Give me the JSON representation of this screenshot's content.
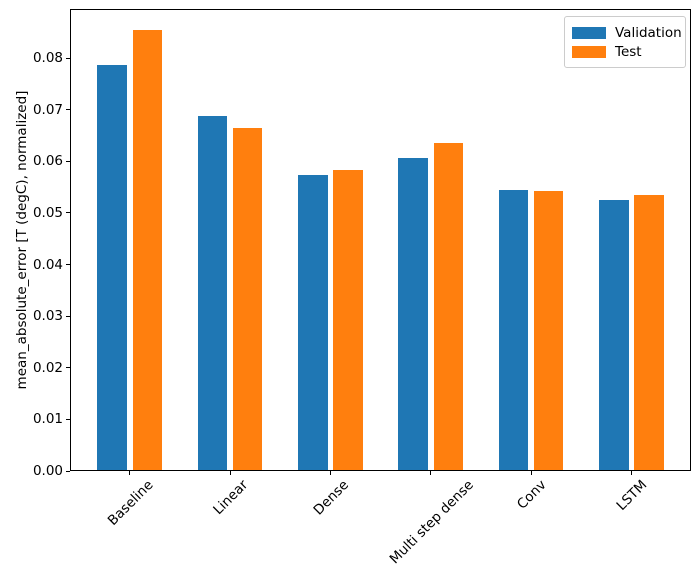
{
  "chart_data": {
    "type": "bar",
    "title": "",
    "xlabel": "",
    "ylabel": "mean_absolute_error [T (degC), normalized]",
    "categories": [
      "Baseline",
      "Linear",
      "Dense",
      "Multi step dense",
      "Conv",
      "LSTM"
    ],
    "series": [
      {
        "name": "Validation",
        "color": "#1f77b4",
        "values": [
          0.0785,
          0.0685,
          0.0571,
          0.0605,
          0.0543,
          0.0523
        ]
      },
      {
        "name": "Test",
        "color": "#ff7f0e",
        "values": [
          0.0853,
          0.0662,
          0.0582,
          0.0633,
          0.0541,
          0.0532
        ]
      }
    ],
    "ylim": [
      0,
      0.0895
    ],
    "yticks": [
      0.0,
      0.01,
      0.02,
      0.03,
      0.04,
      0.05,
      0.06,
      0.07,
      0.08
    ],
    "ytick_labels": [
      "0.00",
      "0.01",
      "0.02",
      "0.03",
      "0.04",
      "0.05",
      "0.06",
      "0.07",
      "0.08"
    ],
    "x_tick_rotation": 45,
    "grid": false,
    "legend": {
      "position": "upper right",
      "entries": [
        "Validation",
        "Test"
      ]
    },
    "axis_color": "#000000"
  }
}
